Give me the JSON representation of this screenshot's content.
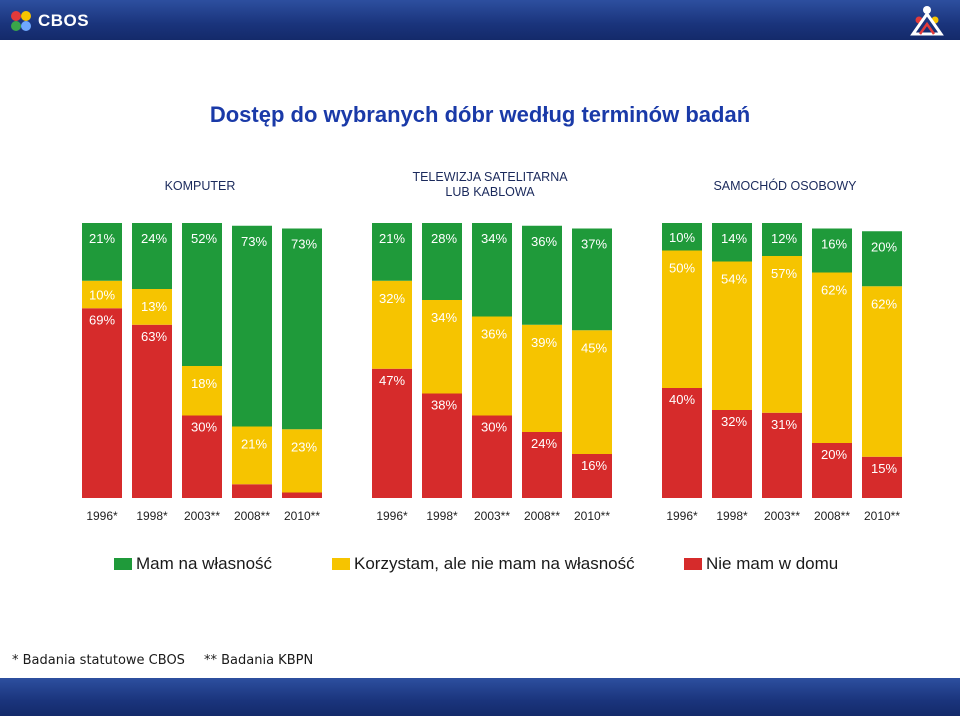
{
  "header": {
    "logo_text": "CBOS",
    "logo_icon": "cbos-logo-icon",
    "corner_icon": "people-logo-icon"
  },
  "title": "Dostęp do wybranych dóbr według terminów badań",
  "colors": {
    "own": "#1f9a3a",
    "use": "#f6c400",
    "none": "#d62b2b"
  },
  "chart_data": {
    "type": "bar",
    "stacked": true,
    "title": "Dostęp do wybranych dóbr według terminów badań",
    "categories": [
      "1996*",
      "1998*",
      "2003**",
      "2008**",
      "2010**"
    ],
    "legend": [
      "Mam na własność",
      "Korzystam, ale nie mam na własność",
      "Nie mam w domu"
    ],
    "panels": [
      {
        "title": "KOMPUTER",
        "series": [
          {
            "name": "Nie mam w domu",
            "values": [
              69,
              63,
              30,
              5,
              2
            ]
          },
          {
            "name": "Korzystam, ale nie mam na własność",
            "values": [
              10,
              13,
              18,
              21,
              23
            ]
          },
          {
            "name": "Mam na własność",
            "values": [
              21,
              24,
              52,
              73,
              73
            ]
          }
        ]
      },
      {
        "title": "TELEWIZJA SATELITARNA LUB KABLOWA",
        "title_lines": [
          "TELEWIZJA SATELITARNA",
          "LUB KABLOWA"
        ],
        "series": [
          {
            "name": "Nie mam w domu",
            "values": [
              47,
              38,
              30,
              24,
              16
            ]
          },
          {
            "name": "Korzystam, ale nie mam na własność",
            "values": [
              32,
              34,
              36,
              39,
              45
            ]
          },
          {
            "name": "Mam na własność",
            "values": [
              21,
              28,
              34,
              36,
              37
            ]
          }
        ]
      },
      {
        "title": "SAMOCHÓD OSOBOWY",
        "series": [
          {
            "name": "Nie mam w domu",
            "values": [
              40,
              32,
              31,
              20,
              15
            ]
          },
          {
            "name": "Korzystam, ale nie mam na własność",
            "values": [
              50,
              54,
              57,
              62,
              62
            ]
          },
          {
            "name": "Mam na własność",
            "values": [
              10,
              14,
              12,
              16,
              20
            ]
          }
        ]
      }
    ]
  },
  "footnotes": [
    "* Badania statutowe CBOS",
    "** Badania KBPN"
  ]
}
